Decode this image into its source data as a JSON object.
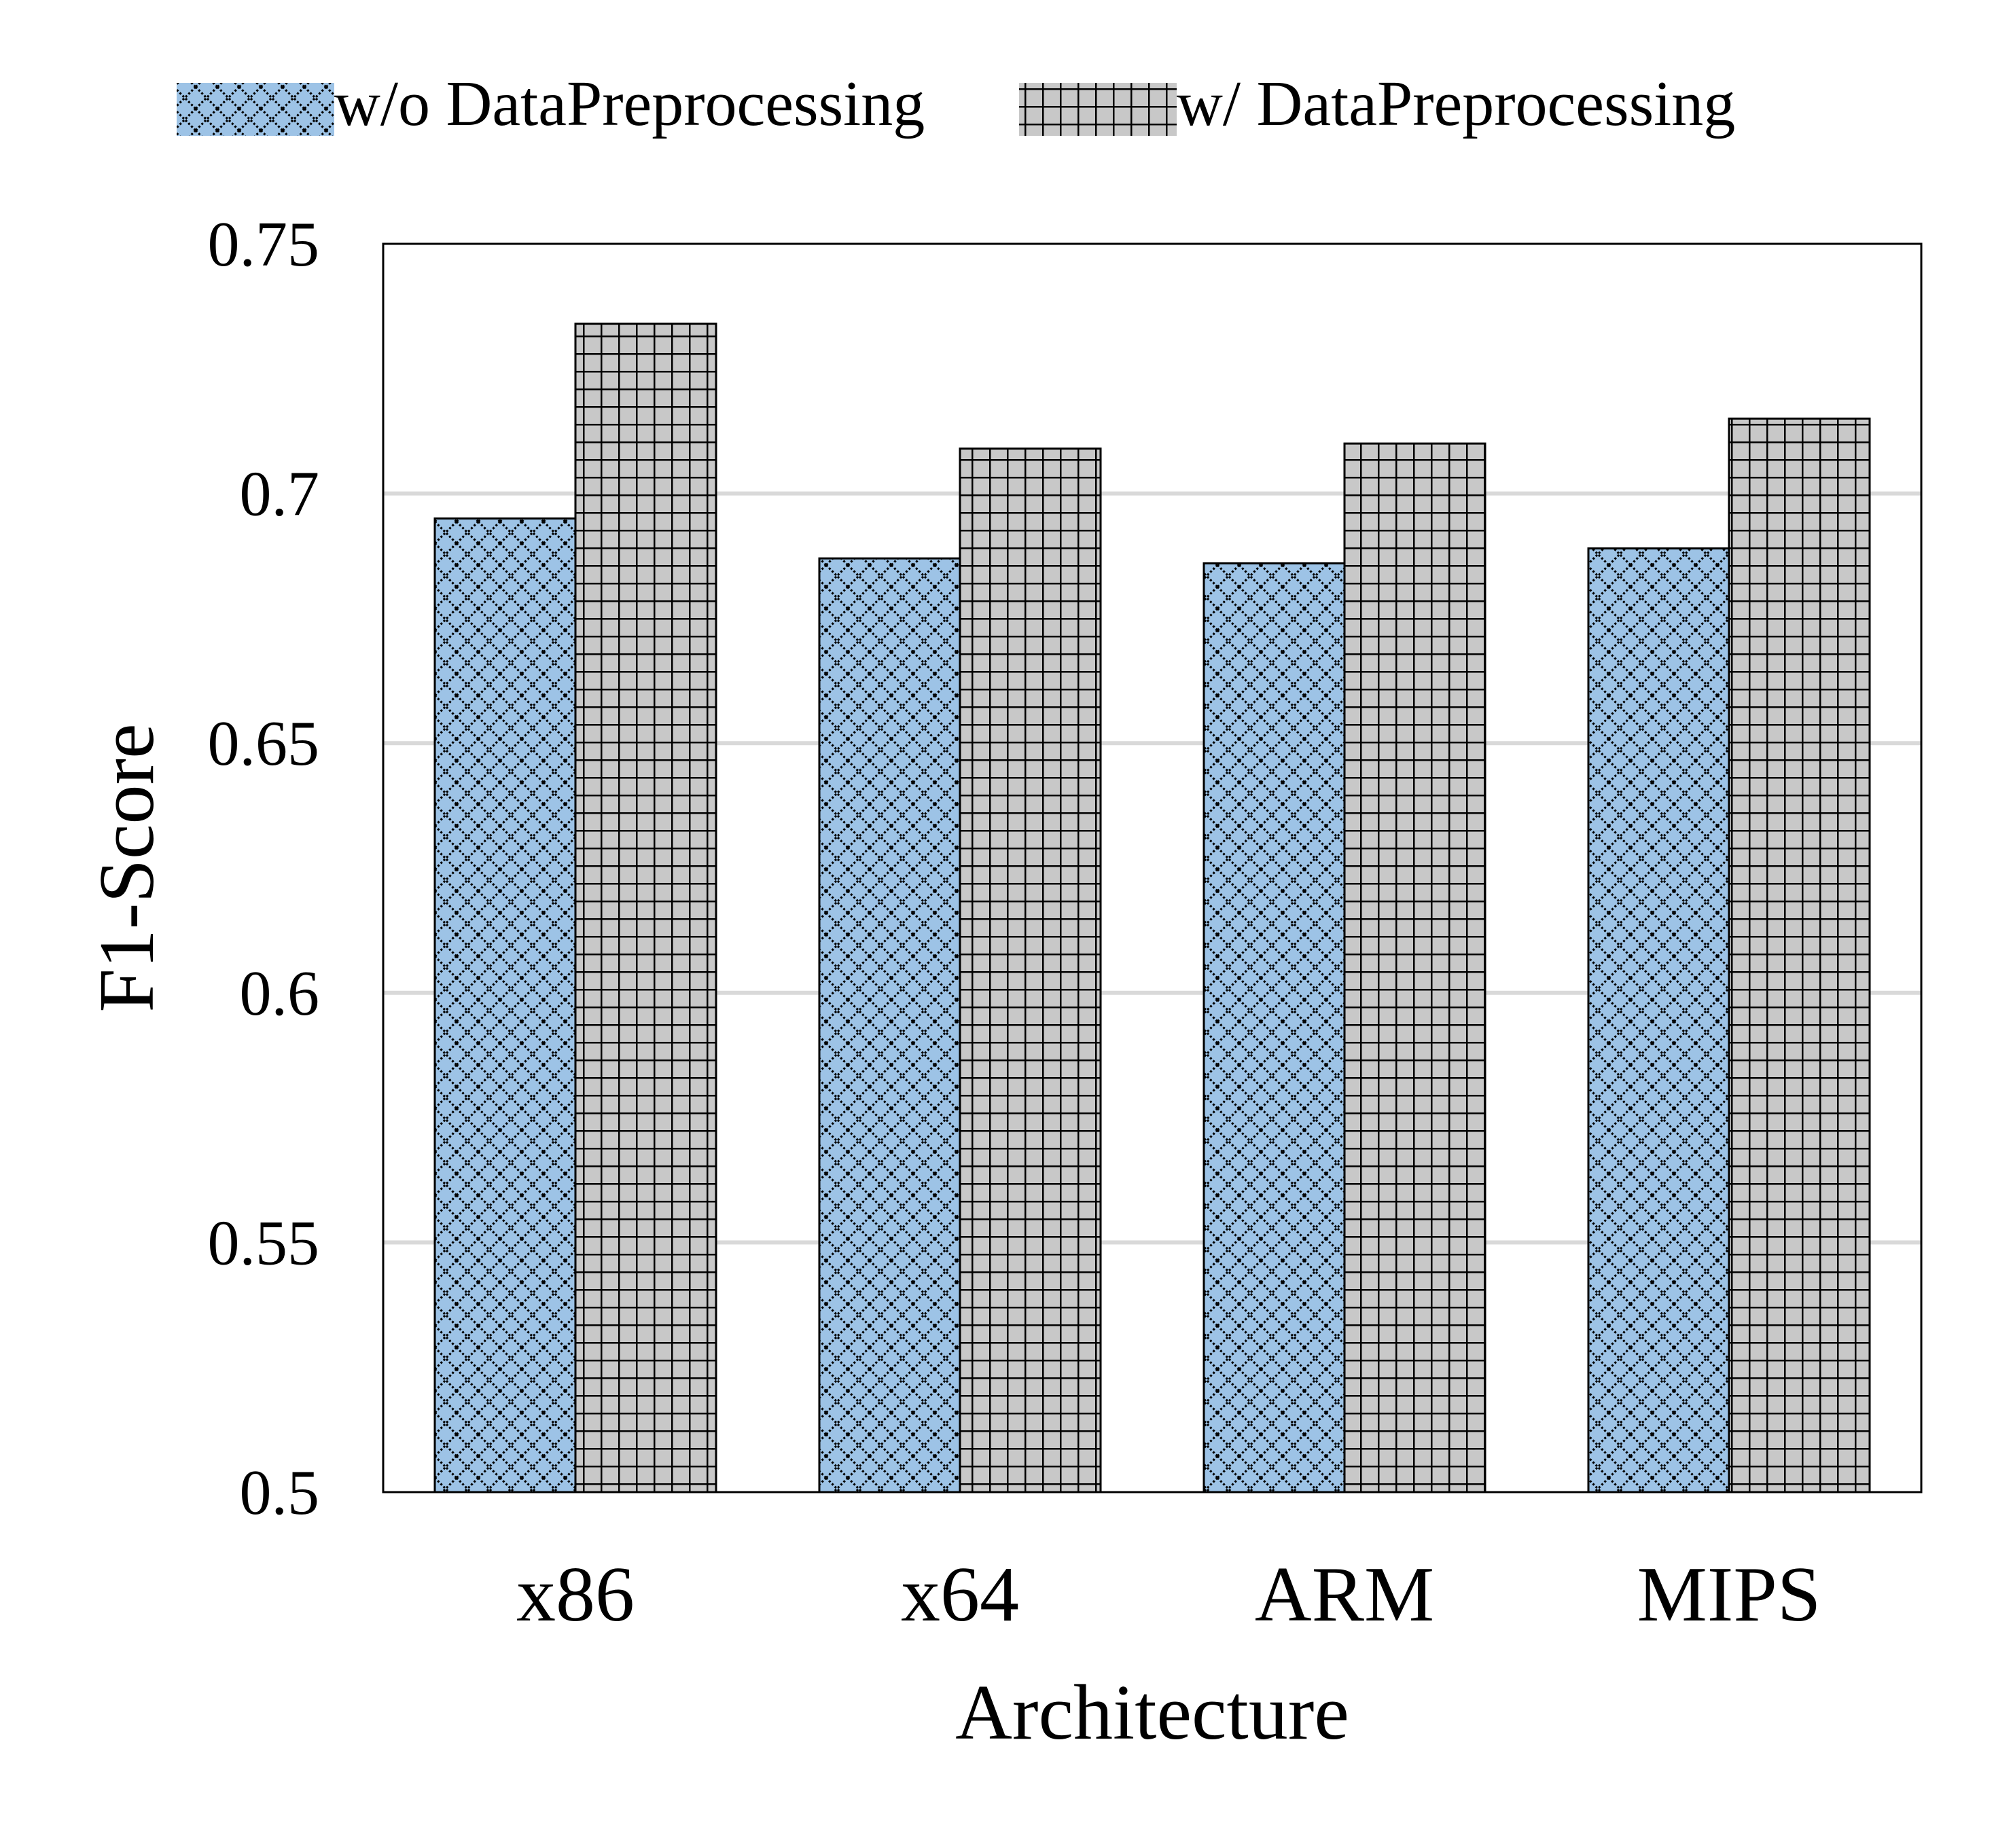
{
  "chart_data": {
    "type": "bar",
    "title": "",
    "xlabel": "Architecture",
    "ylabel": "F1-Score",
    "categories": [
      "x86",
      "x64",
      "ARM",
      "MIPS"
    ],
    "series": [
      {
        "name": "w/o DataPreprocessing",
        "values": [
          0.695,
          0.687,
          0.686,
          0.689
        ],
        "color": "#9dc3e6",
        "pattern": "diamond-lattice"
      },
      {
        "name": "w/ DataPreprocessing",
        "values": [
          0.734,
          0.709,
          0.71,
          0.715
        ],
        "color": "#c8c8c8",
        "pattern": "grid"
      }
    ],
    "ylim": [
      0.5,
      0.75
    ],
    "yticks": [
      0.5,
      0.55,
      0.6,
      0.65,
      0.7,
      0.75
    ],
    "ytick_labels": [
      "0.5",
      "0.55",
      "0.6",
      "0.65",
      "0.7",
      "0.75"
    ],
    "grid": true,
    "gridline_color": "#d9d9d9",
    "legend_position": "top"
  }
}
